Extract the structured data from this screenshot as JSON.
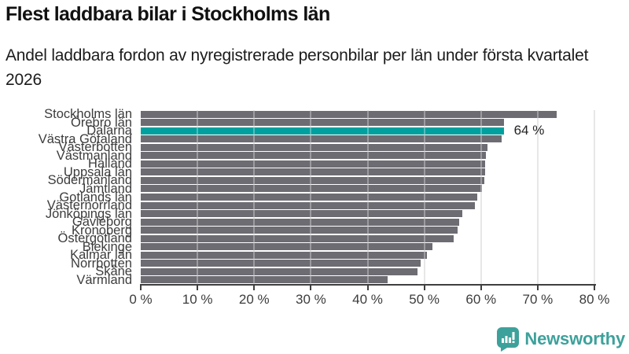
{
  "title": "Flest laddbara bilar i Stockholms län",
  "subtitle": "Andel laddbara fordon av nyregistrerade personbilar per län under första kvartalet 2026",
  "chart_data": {
    "type": "bar",
    "orientation": "horizontal",
    "title": "Flest laddbara bilar i Stockholms län",
    "subtitle": "Andel laddbara fordon av nyregistrerade personbilar per län under första kvartalet 2026",
    "categories": [
      "Stockholms län",
      "Örebro län",
      "Dalarna",
      "Västra Götaland",
      "Västerbotten",
      "Västmanland",
      "Halland",
      "Uppsala län",
      "Södermanland",
      "Jämtland",
      "Gotlands län",
      "Västernorrland",
      "Jönköpings län",
      "Gävleborg",
      "Kronoberg",
      "Östergötland",
      "Blekinge",
      "Kalmar län",
      "Norrbotten",
      "Skåne",
      "Värmland"
    ],
    "values": [
      73.3,
      64.1,
      64.0,
      63.6,
      61.2,
      60.8,
      60.7,
      60.7,
      60.6,
      60.2,
      59.3,
      58.9,
      56.7,
      56.1,
      55.9,
      55.2,
      51.5,
      50.5,
      49.3,
      48.8,
      43.5
    ],
    "unit": "%",
    "highlight_index": 2,
    "highlight_label": "64 %",
    "xlim": [
      0,
      80
    ],
    "x_tick_step": 10,
    "x_tick_labels": [
      "0 %",
      "10 %",
      "20 %",
      "30 %",
      "40 %",
      "50 %",
      "60 %",
      "70 %",
      "80 %"
    ],
    "grid": true,
    "legend": "none",
    "bar_color": "#6d6c72",
    "highlight_color": "#00a09e"
  },
  "colors": {
    "bar_gray": "#6d6c72",
    "highlight_teal": "#00a09e",
    "gridline": "#dcdcdc",
    "axis": "#3f3f3f",
    "brand_teal": "#3da19b"
  },
  "branding": {
    "logo_text": "Newsworthy"
  }
}
